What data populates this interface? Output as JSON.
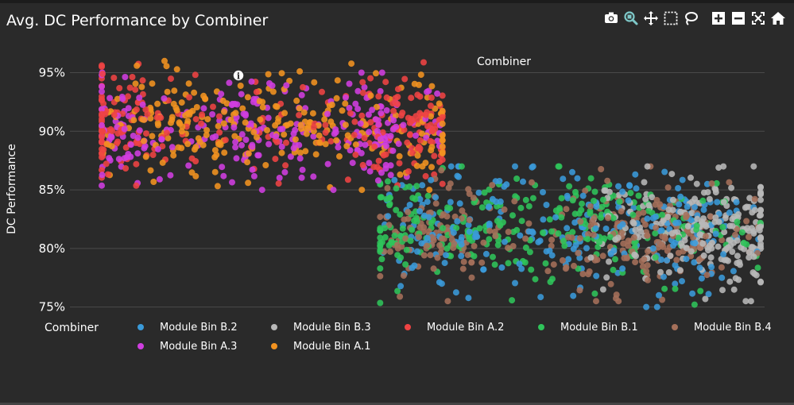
{
  "header": {
    "title": "Avg. DC Performance by Combiner"
  },
  "modebar": {
    "buttons": [
      {
        "name": "camera-icon",
        "group": 0
      },
      {
        "name": "zoom-icon",
        "group": 0,
        "active": true
      },
      {
        "name": "pan-icon",
        "group": 0
      },
      {
        "name": "box-select-icon",
        "group": 0
      },
      {
        "name": "lasso-select-icon",
        "group": 0
      },
      {
        "name": "zoom-in-icon",
        "group": 1
      },
      {
        "name": "zoom-out-icon",
        "group": 1
      },
      {
        "name": "autoscale-icon",
        "group": 1
      },
      {
        "name": "reset-axes-icon",
        "group": 1
      }
    ],
    "active_color": "#7ec8c8",
    "icon_color": "#ffffff"
  },
  "chart_data": {
    "type": "scatter",
    "title": "Avg. DC Performance by Combiner",
    "xlabel": "Combiner",
    "ylabel": "DC Performance",
    "y_tick_labels": [
      "75%",
      "80%",
      "85%",
      "90%",
      "95%"
    ],
    "y_ticks": [
      75,
      80,
      85,
      90,
      95
    ],
    "ylim": [
      74.5,
      97
    ],
    "x_ticks_shown": false,
    "grid": "horizontal",
    "legend_title": "Combiner",
    "legend_position": "bottom",
    "top_annotation": "Combiner",
    "series": [
      {
        "name": "Module Bin B.2",
        "color": "#3a9ad9",
        "group": "B",
        "x_range": [
          0.0,
          1.0
        ],
        "y_center": 81.5,
        "y_spread": 2.6,
        "y_min": 75.0,
        "y_max": 87.0,
        "count": 260,
        "x_clusters": [
          0.15,
          0.55,
          0.8
        ]
      },
      {
        "name": "Module Bin B.3",
        "color": "#b8b8b8",
        "group": "B",
        "x_range": [
          0.55,
          1.0
        ],
        "y_center": 81.5,
        "y_spread": 2.4,
        "y_min": 75.5,
        "y_max": 87.0,
        "count": 240,
        "x_clusters": [
          0.85,
          0.95
        ]
      },
      {
        "name": "Module Bin A.2",
        "color": "#ef4343",
        "group": "A",
        "x_range": [
          0.0,
          1.0
        ],
        "y_center": 90.5,
        "y_spread": 2.3,
        "y_min": 84.5,
        "y_max": 96.0,
        "count": 260,
        "x_clusters": [
          0.05,
          0.9
        ]
      },
      {
        "name": "Module Bin B.1",
        "color": "#2fc45a",
        "group": "B",
        "x_range": [
          0.0,
          1.0
        ],
        "y_center": 81.8,
        "y_spread": 2.2,
        "y_min": 75.0,
        "y_max": 87.0,
        "count": 280,
        "x_clusters": [
          0.05,
          0.3,
          0.55
        ]
      },
      {
        "name": "Module Bin B.4",
        "color": "#a5705a",
        "group": "B",
        "x_range": [
          0.0,
          1.0
        ],
        "y_center": 81.0,
        "y_spread": 2.2,
        "y_min": 75.5,
        "y_max": 87.0,
        "count": 300,
        "x_clusters": [
          0.15,
          0.65,
          0.75
        ]
      },
      {
        "name": "Module Bin A.3",
        "color": "#d03ee0",
        "group": "A",
        "x_range": [
          0.0,
          1.0
        ],
        "y_center": 90.0,
        "y_spread": 2.2,
        "y_min": 85.0,
        "y_max": 95.0,
        "count": 260,
        "x_clusters": [
          0.08,
          0.45,
          0.8
        ]
      },
      {
        "name": "Module Bin A.1",
        "color": "#f39320",
        "group": "A",
        "x_range": [
          0.0,
          1.0
        ],
        "y_center": 90.3,
        "y_spread": 2.2,
        "y_min": 85.0,
        "y_max": 96.0,
        "count": 260,
        "x_clusters": [
          0.2,
          0.35,
          0.6,
          0.95
        ]
      }
    ],
    "groups": {
      "A": {
        "x_start_frac": 0.0,
        "x_end_frac": 0.52
      },
      "B": {
        "x_start_frac": 0.42,
        "x_end_frac": 1.0
      }
    }
  },
  "legend": {
    "title": "Combiner",
    "items": [
      "Module Bin B.2",
      "Module Bin B.3",
      "Module Bin A.2",
      "Module Bin B.1",
      "Module Bin B.4",
      "Module Bin A.3",
      "Module Bin A.1"
    ]
  }
}
